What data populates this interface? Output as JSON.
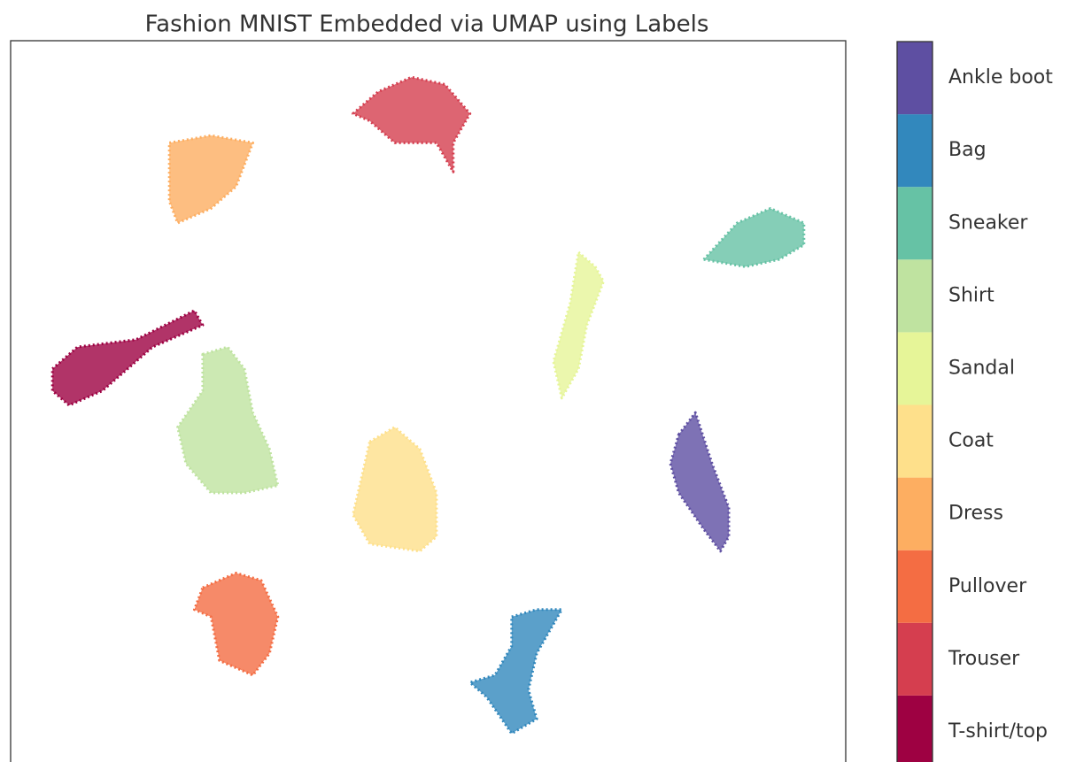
{
  "chart_data": {
    "type": "scatter",
    "title": "Fashion MNIST Embedded via UMAP using Labels",
    "xlim": [
      0,
      100
    ],
    "ylim": [
      0,
      100
    ],
    "series": [
      {
        "name": "T-shirt/top",
        "color": "#9e0142",
        "x": [
          5,
          8,
          15,
          22,
          23,
          17,
          11,
          7,
          5
        ],
        "values": [
          55,
          58,
          59,
          63,
          61,
          58,
          52,
          50,
          52
        ]
      },
      {
        "name": "Trouser",
        "color": "#d53e4f",
        "x": [
          41,
          44,
          48,
          52,
          55,
          53,
          53,
          51,
          46,
          43
        ],
        "values": [
          90,
          93,
          95,
          94,
          90,
          86,
          82,
          86,
          86,
          89
        ]
      },
      {
        "name": "Pullover",
        "color": "#f46d43",
        "x": [
          23,
          27,
          30,
          32,
          31,
          29,
          25,
          24,
          22
        ],
        "values": [
          25,
          27,
          26,
          21,
          16,
          13,
          15,
          21,
          22
        ]
      },
      {
        "name": "Dress",
        "color": "#fdae61",
        "x": [
          19,
          24,
          29,
          27,
          24,
          20,
          19,
          19
        ],
        "values": [
          86,
          87,
          86,
          80,
          77,
          75,
          78,
          83
        ]
      },
      {
        "name": "Coat",
        "color": "#fee08b",
        "x": [
          43,
          46,
          49,
          51,
          51,
          49,
          43,
          41,
          42
        ],
        "values": [
          45,
          47,
          44,
          38,
          32,
          30,
          31,
          35,
          40
        ]
      },
      {
        "name": "Sandal",
        "color": "#e6f598",
        "x": [
          68,
          70,
          71,
          69,
          68,
          66,
          65,
          67
        ],
        "values": [
          71,
          69,
          67,
          61,
          55,
          51,
          56,
          64
        ]
      },
      {
        "name": "Shirt",
        "color": "#bfe3a0",
        "x": [
          23,
          26,
          28,
          29,
          31,
          32,
          28,
          24,
          21,
          20,
          23
        ],
        "values": [
          57,
          58,
          55,
          49,
          44,
          39,
          38,
          38,
          42,
          47,
          52
        ]
      },
      {
        "name": "Sneaker",
        "color": "#66c2a5",
        "x": [
          83,
          87,
          91,
          95,
          95,
          92,
          88
        ],
        "values": [
          70,
          75,
          77,
          75,
          72,
          70,
          69
        ]
      },
      {
        "name": "Bag",
        "color": "#3288bd",
        "x": [
          60,
          63,
          66,
          63,
          62,
          63,
          60,
          57,
          55,
          58,
          60
        ],
        "values": [
          21,
          22,
          22,
          16,
          11,
          7,
          5,
          10,
          12,
          13,
          17
        ]
      },
      {
        "name": "Ankle boot",
        "color": "#5e4fa2",
        "x": [
          80,
          82,
          84,
          86,
          86,
          85,
          83,
          80,
          79
        ],
        "values": [
          46,
          49,
          42,
          36,
          32,
          30,
          33,
          38,
          42
        ]
      }
    ]
  }
}
